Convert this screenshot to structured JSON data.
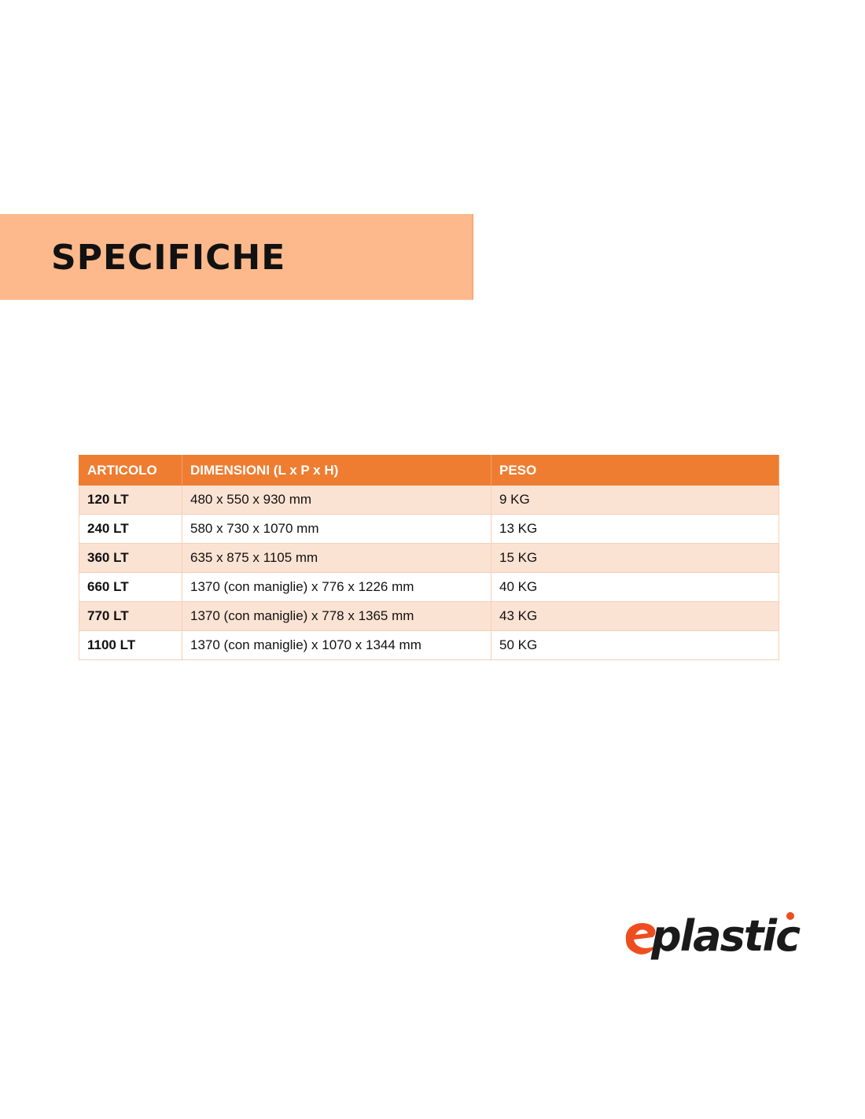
{
  "title": "SPECIFICHE",
  "table": {
    "headers": [
      "ARTICOLO",
      "DIMENSIONI (L x P x H)",
      "PESO"
    ],
    "rows": [
      [
        "120 LT",
        "480 x 550 x 930 mm",
        "9 KG"
      ],
      [
        "240 LT",
        "580 x 730 x 1070 mm",
        "13 KG"
      ],
      [
        "360 LT",
        "635 x 875 x 1105 mm",
        "15 KG"
      ],
      [
        "660 LT",
        "1370 (con maniglie) x 776 x 1226 mm",
        "40 KG"
      ],
      [
        "770 LT",
        "1370 (con maniglie) x 778 x 1365 mm",
        "43 KG"
      ],
      [
        "1100 LT",
        "1370 (con maniglie) x 1070 x 1344 mm",
        "50 KG"
      ]
    ]
  },
  "logo": {
    "text": "eplastic",
    "accent": "#EE4E1F"
  },
  "colors": {
    "banner": "#FDB98B",
    "header": "#EE7D31",
    "row_alt": "#FBE3D4"
  }
}
